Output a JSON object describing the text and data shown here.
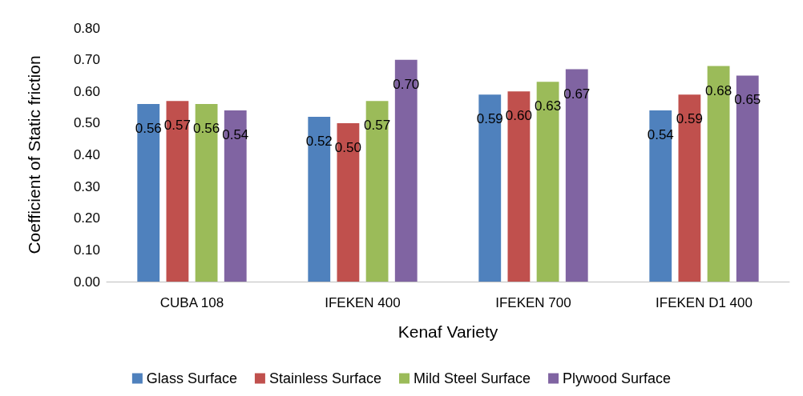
{
  "chart_data": {
    "type": "bar",
    "xlabel": "Kenaf Variety",
    "ylabel": "Coefficient of Static friction",
    "categories": [
      "CUBA 108",
      "IFEKEN 400",
      "IFEKEN 700",
      "IFEKEN D1 400"
    ],
    "series": [
      {
        "name": "Glass Surface",
        "color": "#4f81bd",
        "values": [
          0.56,
          0.52,
          0.59,
          0.54
        ],
        "value_labels": [
          "0.56",
          "0.52",
          "0.59",
          "0.54"
        ]
      },
      {
        "name": "Stainless Surface",
        "color": "#c0504d",
        "values": [
          0.57,
          0.5,
          0.6,
          0.59
        ],
        "value_labels": [
          "0.57",
          "0.50",
          "0.60",
          "0.59"
        ]
      },
      {
        "name": "Mild Steel Surface",
        "color": "#9bbb59",
        "values": [
          0.56,
          0.57,
          0.63,
          0.68
        ],
        "value_labels": [
          "0.56",
          "0.57",
          "0.63",
          "0.68"
        ]
      },
      {
        "name": "Plywood Surface",
        "color": "#8064a2",
        "values": [
          0.54,
          0.7,
          0.67,
          0.65
        ],
        "value_labels": [
          "0.54",
          "0.70",
          "0.67",
          "0.65"
        ]
      }
    ],
    "ylim": [
      0,
      0.8
    ],
    "yticks": [
      {
        "value": 0,
        "label": "0.00"
      },
      {
        "value": 0.1,
        "label": "0.10"
      },
      {
        "value": 0.2,
        "label": "0.20"
      },
      {
        "value": 0.3,
        "label": "0.30"
      },
      {
        "value": 0.4,
        "label": "0.40"
      },
      {
        "value": 0.5,
        "label": "0.50"
      },
      {
        "value": 0.6,
        "label": "0.60"
      },
      {
        "value": 0.7,
        "label": "0.70"
      },
      {
        "value": 0.8,
        "label": "0.80"
      }
    ],
    "grid": false,
    "legend": "bottom"
  }
}
